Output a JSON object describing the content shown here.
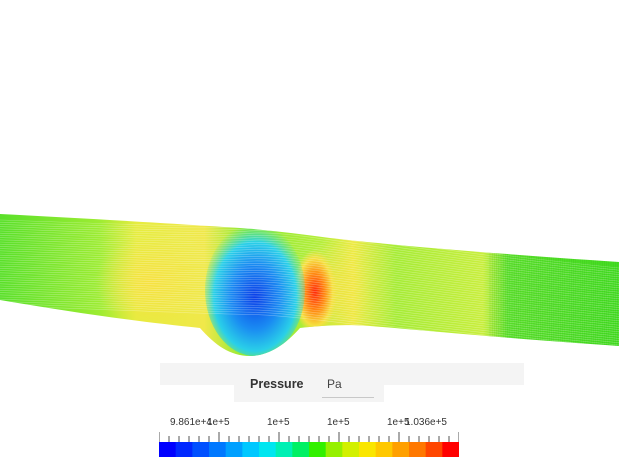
{
  "legend": {
    "title": "Pressure",
    "unit": "Pa",
    "tick_labels": [
      "9.861e+4",
      "1e+5",
      "1e+5",
      "1e+5",
      "1e+5",
      "1.036e+5"
    ],
    "colors": [
      "#0000ff",
      "#0028ff",
      "#0050ff",
      "#0078ff",
      "#00a0ff",
      "#00c8ff",
      "#00e6f0",
      "#00f0b4",
      "#00f064",
      "#32f000",
      "#96f000",
      "#d2f000",
      "#fae600",
      "#ffc800",
      "#ffa000",
      "#ff7800",
      "#ff4600",
      "#ff0000"
    ]
  },
  "scene": {
    "tube_color": "#44dd22",
    "low_pressure_color": "#0a5ef0",
    "high_pressure_color": "#ff3a10"
  }
}
